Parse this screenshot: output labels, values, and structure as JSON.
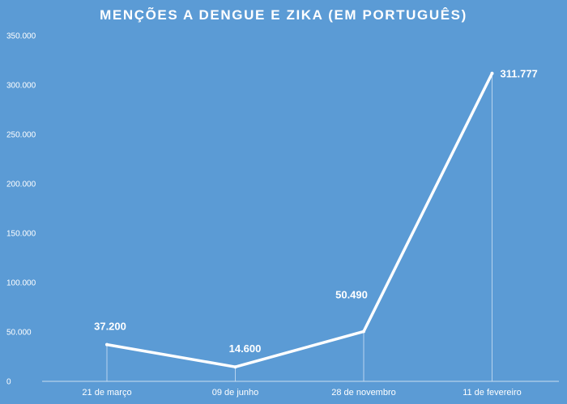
{
  "chart_data": {
    "type": "line",
    "title": "MENÇÕES A DENGUE E ZIKA (EM PORTUGUÊS)",
    "xlabel": "",
    "ylabel": "",
    "categories": [
      "21 de março",
      "09 de junho",
      "28 de novembro",
      "11 de fevereiro"
    ],
    "series": [
      {
        "values": [
          37200,
          14600,
          50490,
          311777
        ],
        "labels": [
          "37.200",
          "14.600",
          "50.490",
          "311.777"
        ]
      }
    ],
    "ylim": [
      0,
      350000
    ],
    "yticks": [
      0,
      50000,
      100000,
      150000,
      200000,
      250000,
      300000,
      350000
    ],
    "ytick_labels": [
      "0",
      "50.000",
      "100.000",
      "150.000",
      "200.000",
      "250.000",
      "300.000",
      "350.000"
    ],
    "grid": false,
    "legend": "none",
    "colors": {
      "background": "#5b9bd5",
      "line": "#ffffff",
      "text": "#ffffff",
      "axis": "#c9dcf0"
    }
  }
}
